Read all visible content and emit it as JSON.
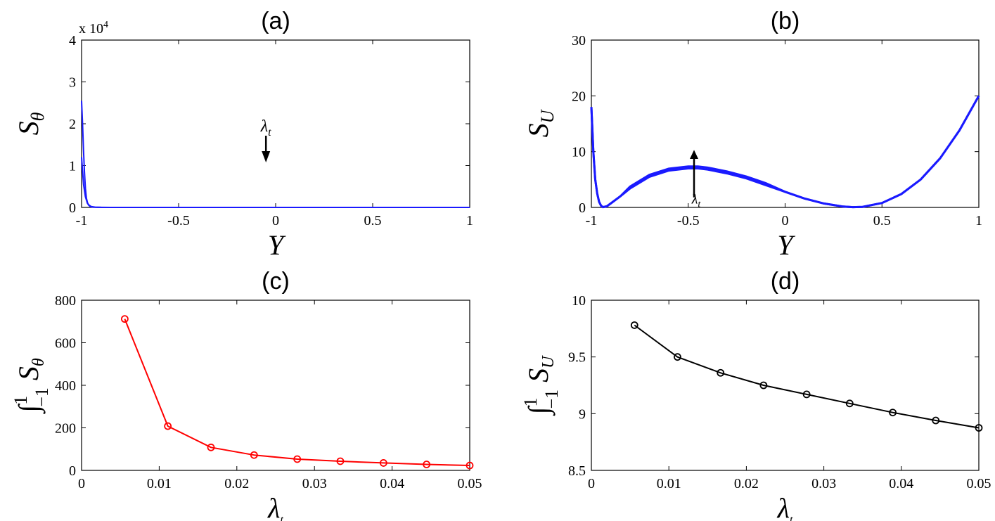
{
  "chart_data": [
    {
      "id": "a",
      "type": "line",
      "title": "(a)",
      "xlabel": "Y",
      "ylabel": "S",
      "ylabel_sub": "θ",
      "exponent_label": "x 10",
      "exponent_power": "4",
      "annotation": "λ",
      "annotation_sub": "t",
      "color": "#1a1aff",
      "xlim": [
        -1,
        1
      ],
      "ylim": [
        0,
        4
      ],
      "xticks": [
        -1,
        -0.5,
        0,
        0.5,
        1
      ],
      "xtick_labels": [
        "-1",
        "-0.5",
        "0",
        "0.5",
        "1"
      ],
      "yticks": [
        0,
        1,
        2,
        3,
        4
      ],
      "ytick_labels": [
        "0",
        "1",
        "2",
        "3",
        "4"
      ],
      "series": [
        {
          "x": [
            -1,
            -0.995,
            -0.99,
            -0.985,
            -0.98,
            -0.975,
            -0.97,
            -0.965,
            -0.96,
            -0.955,
            -0.95,
            -0.94,
            -0.93,
            -0.92,
            -0.9,
            -0.85,
            -0.5,
            0,
            0.5,
            1
          ],
          "y": [
            2.55,
            2.0,
            1.35,
            0.85,
            0.45,
            0.22,
            0.12,
            0.06,
            0.04,
            0.02,
            0.012,
            0.006,
            0.003,
            0.002,
            0.001,
            0.0005,
            0.0002,
            0.0001,
            0.0001,
            0.0001
          ]
        },
        {
          "x": [
            -1,
            -0.99,
            -0.98,
            -0.97,
            -0.96,
            -0.95,
            -0.93,
            -0.9,
            -0.5,
            1
          ],
          "y": [
            1.2,
            0.55,
            0.25,
            0.1,
            0.05,
            0.02,
            0.006,
            0.002,
            0.0002,
            0.0001
          ]
        }
      ]
    },
    {
      "id": "b",
      "type": "line",
      "title": "(b)",
      "xlabel": "Y",
      "ylabel": "S",
      "ylabel_sub": "U",
      "annotation": "λ",
      "annotation_sub": "t",
      "color": "#1a1aff",
      "xlim": [
        -1,
        1
      ],
      "ylim": [
        0,
        30
      ],
      "xticks": [
        -1,
        -0.5,
        0,
        0.5,
        1
      ],
      "xtick_labels": [
        "-1",
        "-0.5",
        "0",
        "0.5",
        "1"
      ],
      "yticks": [
        0,
        10,
        20,
        30
      ],
      "ytick_labels": [
        "0",
        "10",
        "20",
        "30"
      ],
      "series": [
        {
          "x": [
            -1,
            -0.99,
            -0.98,
            -0.97,
            -0.96,
            -0.95,
            -0.94,
            -0.92,
            -0.9,
            -0.85,
            -0.8,
            -0.7,
            -0.6,
            -0.5,
            -0.45,
            -0.4,
            -0.3,
            -0.2,
            -0.1,
            0,
            0.1,
            0.2,
            0.3,
            0.35,
            0.4,
            0.5,
            0.6,
            0.7,
            0.8,
            0.9,
            1
          ],
          "y": [
            18,
            10,
            5,
            2.5,
            1.0,
            0.3,
            0.05,
            0.2,
            0.7,
            2.0,
            3.4,
            5.5,
            6.6,
            7.0,
            7.0,
            6.8,
            6.1,
            5.2,
            4.0,
            2.8,
            1.6,
            0.7,
            0.15,
            0.05,
            0.1,
            0.8,
            2.4,
            5.0,
            8.8,
            13.8,
            20
          ]
        }
      ]
    },
    {
      "id": "c",
      "type": "line",
      "title": "(c)",
      "xlabel": "λ",
      "xlabel_sub": "t",
      "ylabel": "∫",
      "ylabel_upper": "1",
      "ylabel_lower": "−1",
      "ylabel_main": "S",
      "ylabel_sub": "θ",
      "color": "#ff0000",
      "marker": "circle",
      "xlim": [
        0,
        0.05
      ],
      "ylim": [
        0,
        800
      ],
      "xticks": [
        0,
        0.01,
        0.02,
        0.03,
        0.04,
        0.05
      ],
      "xtick_labels": [
        "0",
        "0.01",
        "0.02",
        "0.03",
        "0.04",
        "0.05"
      ],
      "yticks": [
        0,
        200,
        400,
        600,
        800
      ],
      "ytick_labels": [
        "0",
        "200",
        "400",
        "600",
        "800"
      ],
      "series": [
        {
          "x": [
            0.00556,
            0.01111,
            0.01667,
            0.02222,
            0.02778,
            0.03333,
            0.03889,
            0.04444,
            0.05
          ],
          "y": [
            712,
            208,
            108,
            72,
            53,
            43,
            35,
            28,
            23
          ]
        }
      ]
    },
    {
      "id": "d",
      "type": "line",
      "title": "(d)",
      "xlabel": "λ",
      "xlabel_sub": "t",
      "ylabel": "∫",
      "ylabel_upper": "1",
      "ylabel_lower": "−1",
      "ylabel_main": "S",
      "ylabel_sub": "U",
      "color": "#000000",
      "marker": "circle",
      "xlim": [
        0,
        0.05
      ],
      "ylim": [
        8.5,
        10
      ],
      "xticks": [
        0,
        0.01,
        0.02,
        0.03,
        0.04,
        0.05
      ],
      "xtick_labels": [
        "0",
        "0.01",
        "0.02",
        "0.03",
        "0.04",
        "0.05"
      ],
      "yticks": [
        8.5,
        9,
        9.5,
        10
      ],
      "ytick_labels": [
        "8.5",
        "9",
        "9.5",
        "10"
      ],
      "series": [
        {
          "x": [
            0.00556,
            0.01111,
            0.01667,
            0.02222,
            0.02778,
            0.03333,
            0.03889,
            0.04444,
            0.05
          ],
          "y": [
            9.78,
            9.5,
            9.36,
            9.25,
            9.17,
            9.09,
            9.01,
            8.94,
            8.875
          ]
        }
      ]
    }
  ]
}
